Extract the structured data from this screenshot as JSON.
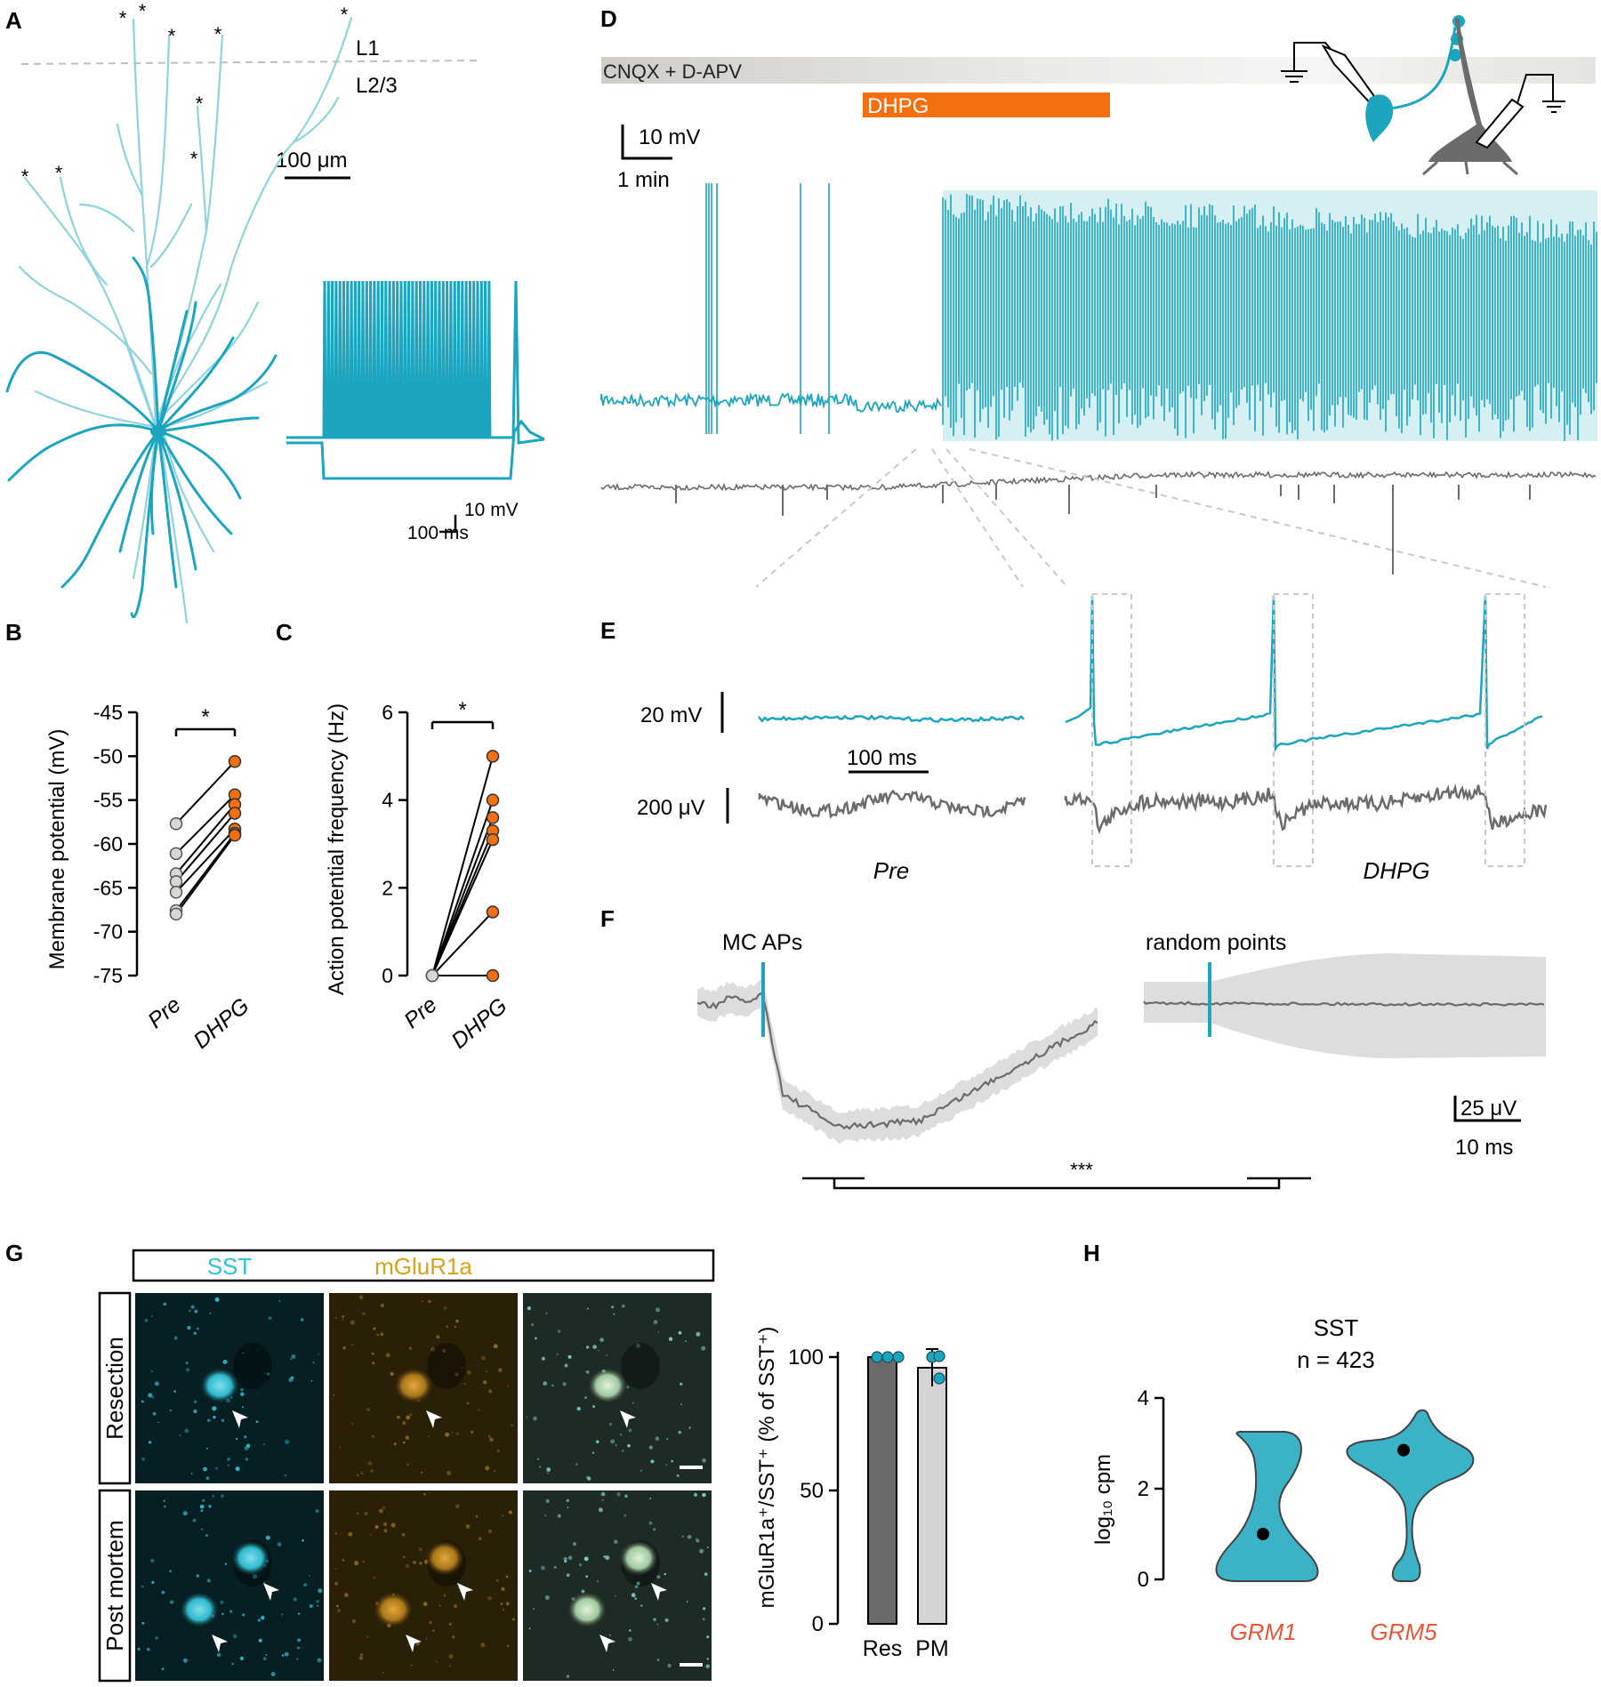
{
  "colors": {
    "cyan": "#1BA5BE",
    "cyan_light": "#8FD3DF",
    "orange": "#F36F10",
    "dark_gray": "#6B6B6D",
    "light_gray": "#D4D4D4",
    "pre_point": "#D9D7D2",
    "gene_label": "#E8553A",
    "sst_label": "#2FC1D6",
    "mglu_label": "#D8A21A"
  },
  "panels": {
    "A": {
      "letter": "A",
      "layer_top": "L1",
      "layer_bottom": "L2/3",
      "scale_um": "100 μm",
      "trace_scale_mv": "10 mV",
      "trace_scale_ms": "100 ms",
      "cut_marker": "*"
    },
    "B": {
      "letter": "B"
    },
    "C": {
      "letter": "C"
    },
    "D": {
      "letter": "D",
      "drug_bath": "CNQX + D-APV",
      "drug_applied": "DHPG",
      "scale_mv": "10 mV",
      "scale_min": "1 min"
    },
    "E": {
      "letter": "E",
      "scale_mv": "20 mV",
      "scale_uv": "200 μV",
      "scale_ms": "100 ms",
      "label_pre": "Pre",
      "label_dhpg": "DHPG"
    },
    "F": {
      "letter": "F",
      "label_left": "MC APs",
      "label_right": "random points",
      "scale_uv": "25 μV",
      "scale_ms": "10 ms",
      "significance": "***"
    },
    "G": {
      "letter": "G",
      "stain_1": "SST",
      "stain_2": "mGluR1a",
      "row_1": "Resection",
      "row_2": "Post mortem"
    },
    "H": {
      "letter": "H",
      "title": "SST",
      "n_label": "n = 423"
    }
  },
  "chart_data": [
    {
      "panel": "B",
      "type": "scatter",
      "ylabel": "Membrane potential (mV)",
      "categories": [
        "Pre",
        "DHPG"
      ],
      "ylim": [
        -75,
        -45
      ],
      "yticks": [
        -45,
        -50,
        -55,
        -60,
        -65,
        -70,
        -75
      ],
      "ytick_labels": [
        "-45",
        "-50",
        "-55",
        "-60",
        "-65",
        "-70",
        "-75"
      ],
      "significance": "*",
      "pairs": [
        {
          "pre": -57.7,
          "dhpg": -50.6
        },
        {
          "pre": -61.1,
          "dhpg": -54.4
        },
        {
          "pre": -63.4,
          "dhpg": -55.5
        },
        {
          "pre": -64.3,
          "dhpg": -56.5
        },
        {
          "pre": -65.5,
          "dhpg": -58.3
        },
        {
          "pre": -67.6,
          "dhpg": -58.8
        },
        {
          "pre": -68.0,
          "dhpg": -59.0
        }
      ]
    },
    {
      "panel": "C",
      "type": "scatter",
      "ylabel": "Action potential frequency (Hz)",
      "categories": [
        "Pre",
        "DHPG"
      ],
      "ylim": [
        0,
        6
      ],
      "yticks": [
        0,
        2,
        4,
        6
      ],
      "ytick_labels": [
        "0",
        "2",
        "4",
        "6"
      ],
      "significance": "*",
      "pairs": [
        {
          "pre": 0,
          "dhpg": 5.0
        },
        {
          "pre": 0,
          "dhpg": 4.0
        },
        {
          "pre": 0,
          "dhpg": 3.6
        },
        {
          "pre": 0,
          "dhpg": 3.3
        },
        {
          "pre": 0,
          "dhpg": 3.1
        },
        {
          "pre": 0,
          "dhpg": 1.45
        },
        {
          "pre": 0,
          "dhpg": 0
        }
      ]
    },
    {
      "panel": "G",
      "type": "bar",
      "ylabel": "mGluR1a⁺/SST⁺ (% of SST⁺)",
      "categories": [
        "Res",
        "PM"
      ],
      "values": [
        100,
        96
      ],
      "errors": [
        0,
        7
      ],
      "points": [
        [
          100,
          100,
          100
        ],
        [
          100,
          100,
          92
        ]
      ],
      "ylim": [
        0,
        100
      ],
      "yticks": [
        0,
        50,
        100
      ],
      "ytick_labels": [
        "0",
        "50",
        "100"
      ]
    },
    {
      "panel": "H",
      "type": "violin",
      "ylabel": "log₁₀ cpm",
      "categories": [
        "GRM1",
        "GRM5"
      ],
      "medians": [
        1.0,
        2.85
      ],
      "ylim": [
        0,
        4
      ],
      "yticks": [
        0,
        2,
        4
      ],
      "ytick_labels": [
        "0",
        "2",
        "4"
      ]
    }
  ]
}
